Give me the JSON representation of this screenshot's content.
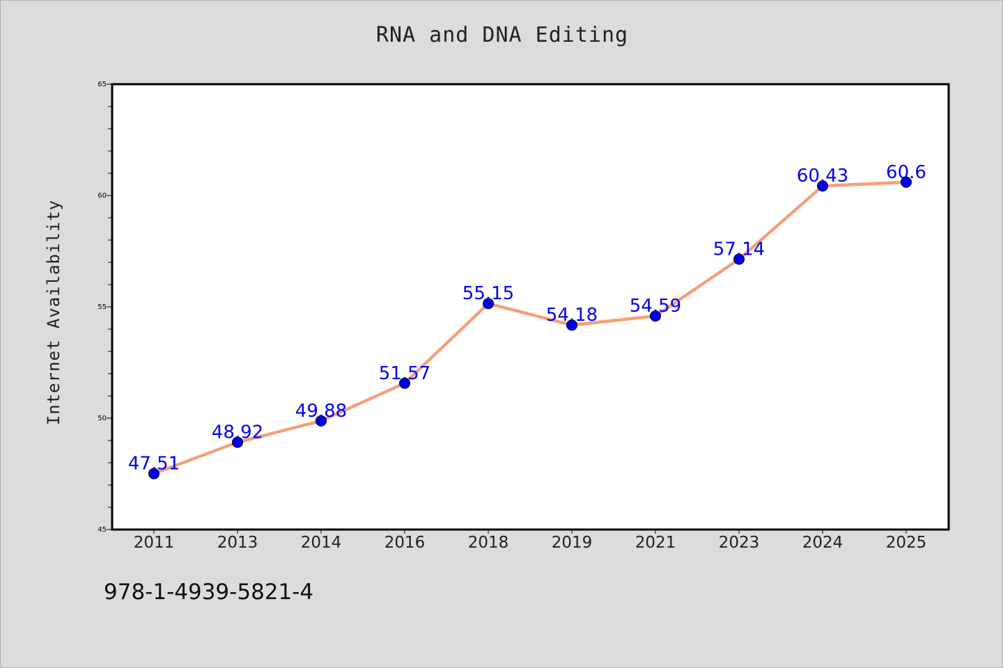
{
  "footer": {
    "id_text": "978-1-4939-5821-4"
  },
  "chart_data": {
    "type": "line",
    "title": "RNA and DNA Editing",
    "xlabel": "",
    "ylabel": "Internet Availability",
    "categories": [
      "2011",
      "2013",
      "2014",
      "2016",
      "2018",
      "2019",
      "2021",
      "2023",
      "2024",
      "2025"
    ],
    "series": [
      {
        "values": [
          47.51,
          48.92,
          49.88,
          51.57,
          55.15,
          54.18,
          54.59,
          57.14,
          60.43,
          60.6
        ],
        "labels": [
          "47.51",
          "48.92",
          "49.88",
          "51.57",
          "55.15",
          "54.18",
          "54.59",
          "57.14",
          "60.43",
          "60.6"
        ],
        "line_color": "#f4a07a",
        "marker_color": "#0000ee",
        "label_color": "#0000ee"
      }
    ],
    "ylim": [
      45,
      65
    ],
    "yticks": [
      "45",
      "50",
      "55",
      "60",
      "65"
    ],
    "grid": false,
    "legend": "none"
  }
}
